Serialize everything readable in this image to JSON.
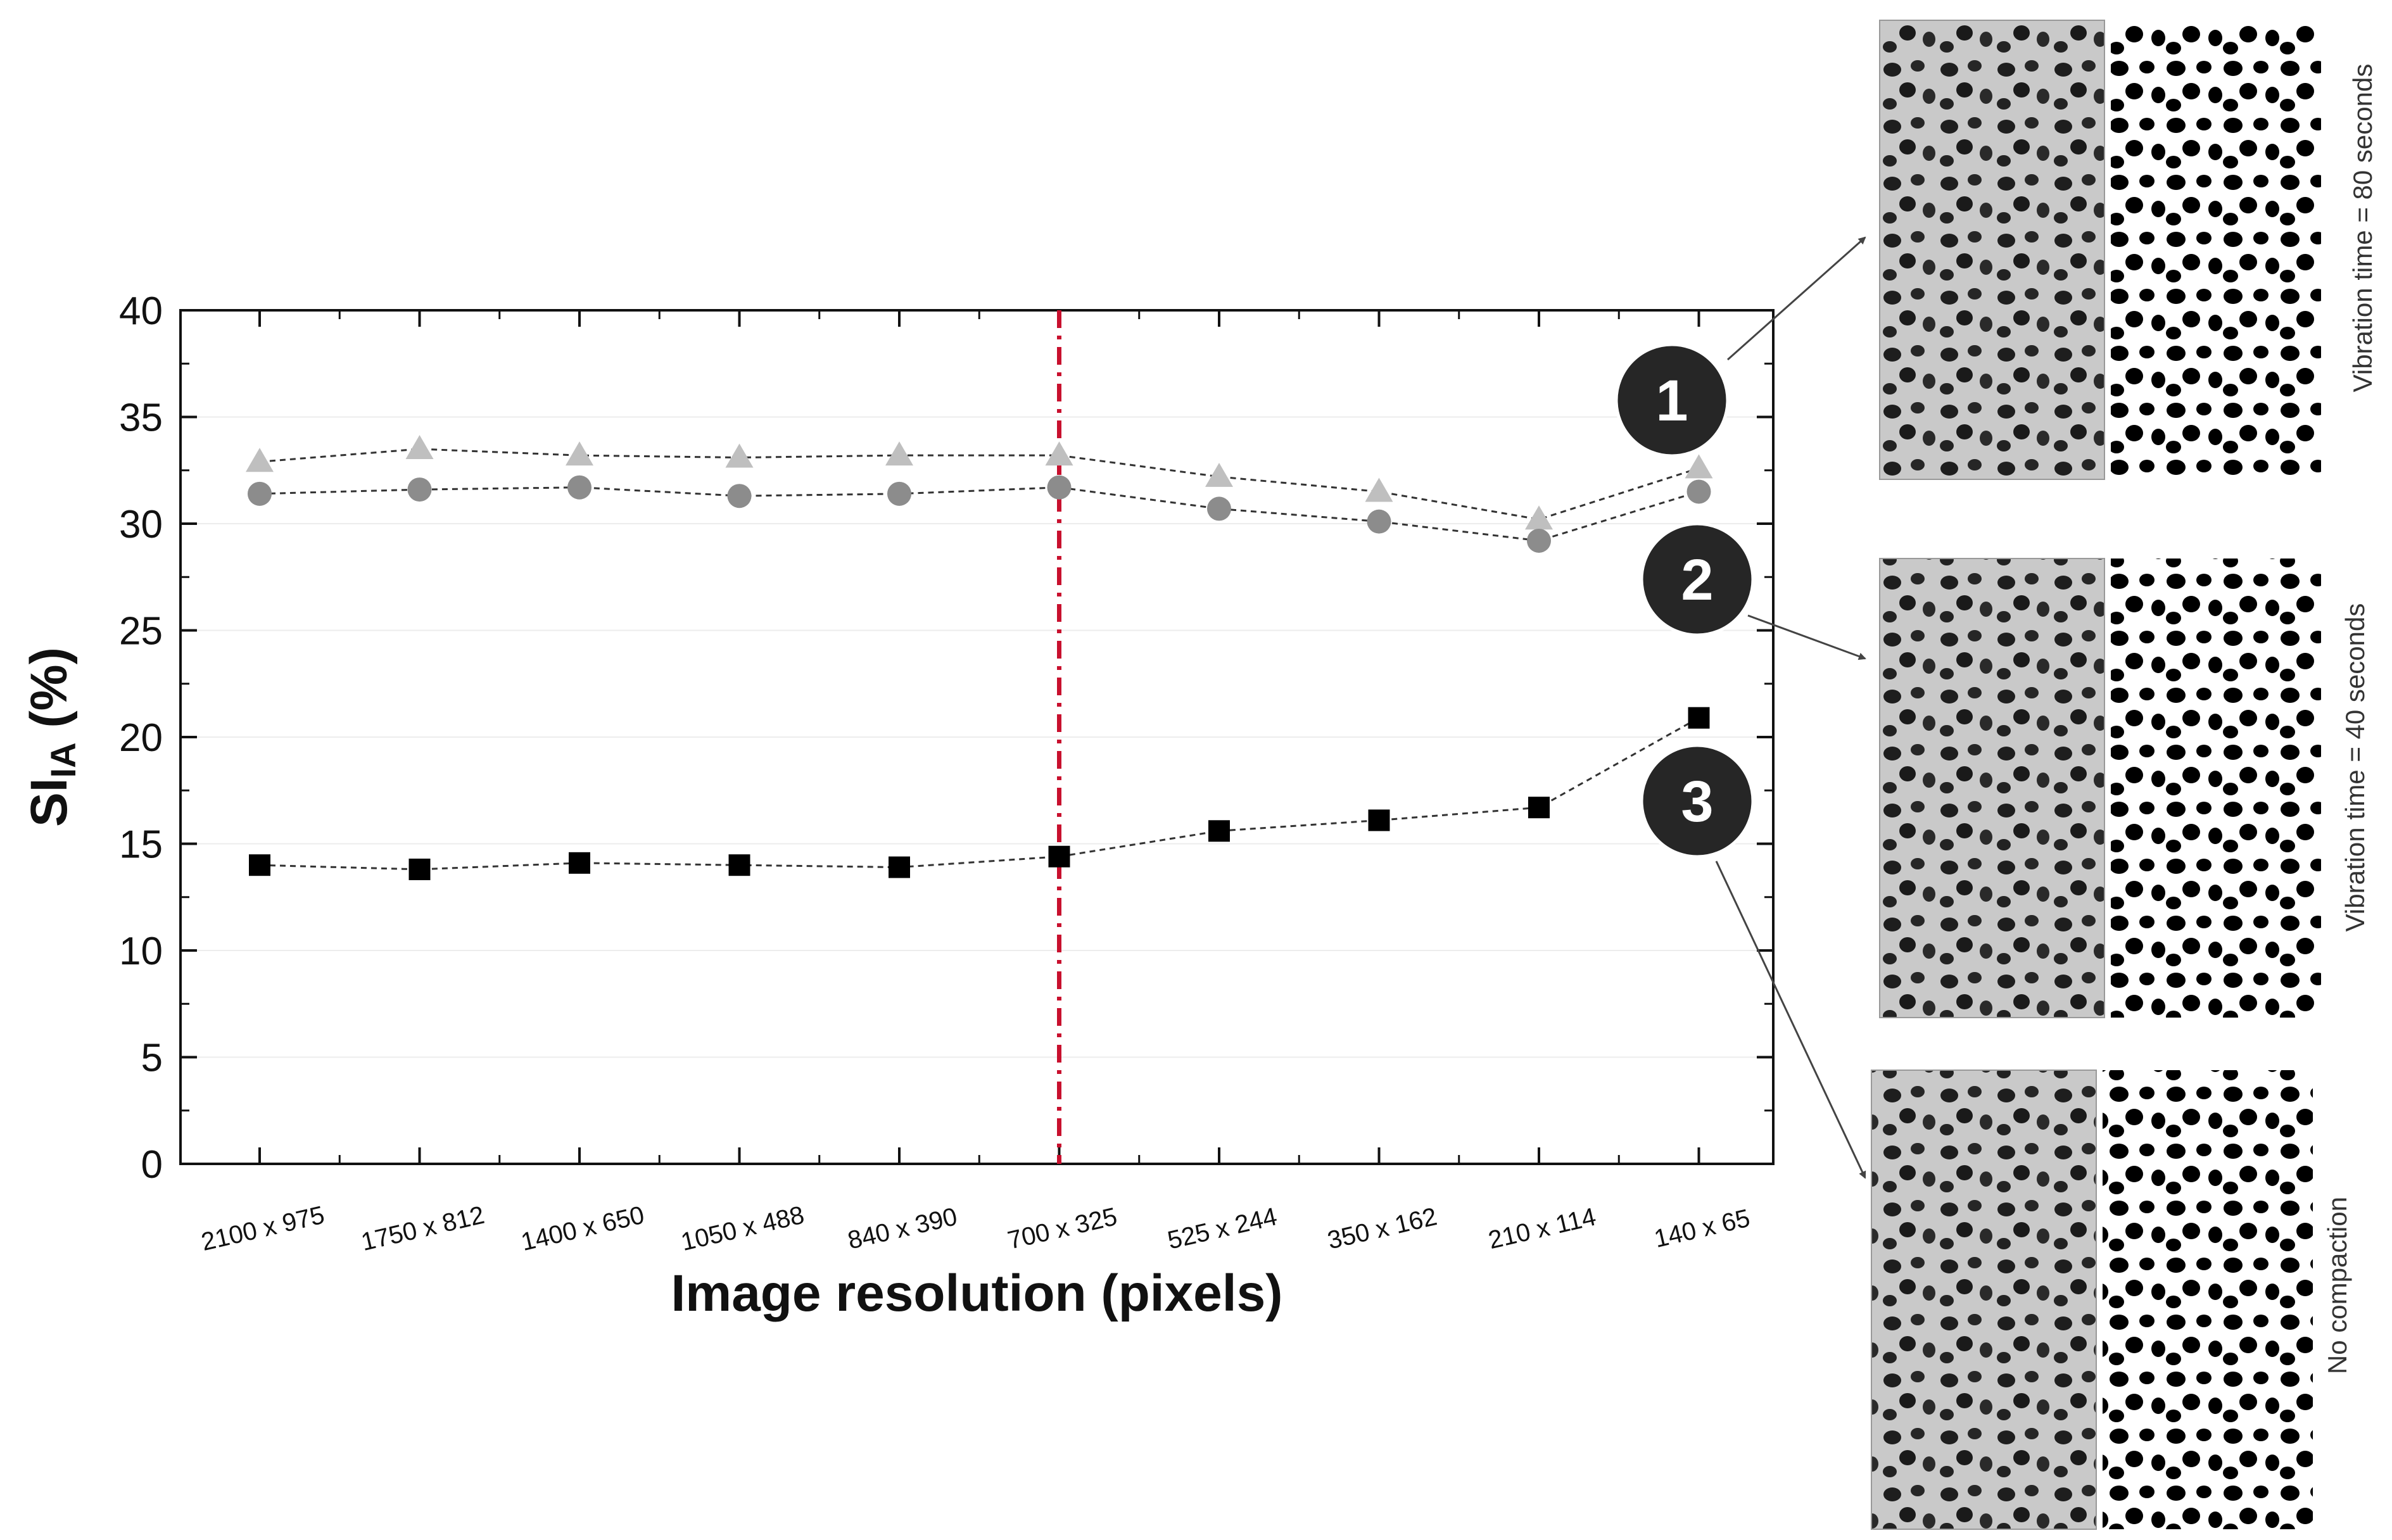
{
  "chart_data": {
    "type": "line",
    "title": "",
    "xlabel": "Image resolution (pixels)",
    "ylabel_main": "SI",
    "ylabel_sub": "IA",
    "ylabel_unit": " (%)",
    "ylim": [
      0,
      40
    ],
    "yticks": [
      "0",
      "5",
      "10",
      "15",
      "20",
      "25",
      "30",
      "35",
      "40"
    ],
    "categories": [
      "2100 x 975",
      "1750 x 812",
      "1400 x 650",
      "1050 x 488",
      "840 x 390",
      "700 x 325",
      "525 x 244",
      "350 x 162",
      "210 x 114",
      "140 x 65"
    ],
    "reference_line": {
      "category": "700 x 325",
      "color": "#c8102e"
    },
    "series": [
      {
        "marker": "triangle",
        "color": "#bfbfbf",
        "badge": "1",
        "values": [
          32.9,
          33.5,
          33.2,
          33.1,
          33.2,
          33.2,
          32.2,
          31.5,
          30.2,
          32.6
        ]
      },
      {
        "marker": "circle",
        "color": "#8c8c8c",
        "badge": "2",
        "values": [
          31.4,
          31.6,
          31.7,
          31.3,
          31.4,
          31.7,
          30.7,
          30.1,
          29.2,
          31.5
        ]
      },
      {
        "marker": "square",
        "color": "#000000",
        "badge": "3",
        "values": [
          14.0,
          13.8,
          14.1,
          14.0,
          13.9,
          14.4,
          15.6,
          16.1,
          16.7,
          20.9
        ]
      }
    ],
    "grid": true,
    "legend": "none"
  },
  "panels": [
    {
      "badge": "1",
      "label": "Vibration time = 80 seconds"
    },
    {
      "badge": "2",
      "label": "Vibration time = 40 seconds"
    },
    {
      "badge": "3",
      "label": "No compaction"
    }
  ]
}
